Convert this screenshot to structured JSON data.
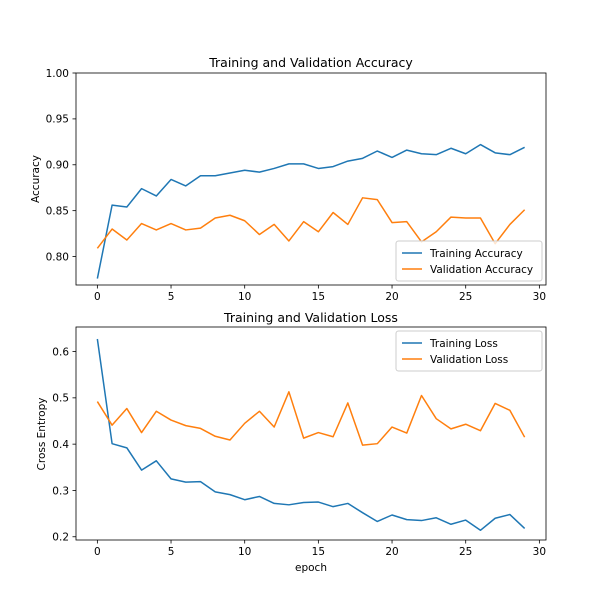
{
  "chart_data": [
    {
      "type": "line",
      "title": "Training and Validation Accuracy",
      "xlabel": "",
      "ylabel": "Accuracy",
      "xlim": [
        -1.45,
        30.45
      ],
      "ylim": [
        0.769,
        1.0
      ],
      "xticks": [
        "0",
        "5",
        "10",
        "15",
        "20",
        "25",
        "30"
      ],
      "xtick_values": [
        0,
        5,
        10,
        15,
        20,
        25,
        30
      ],
      "yticks": [
        "0.80",
        "0.85",
        "0.90",
        "0.95",
        "1.00"
      ],
      "ytick_values": [
        0.8,
        0.85,
        0.9,
        0.95,
        1.0
      ],
      "legend_position": "lower-right",
      "x": [
        0,
        1,
        2,
        3,
        4,
        5,
        6,
        7,
        8,
        9,
        10,
        11,
        12,
        13,
        14,
        15,
        16,
        17,
        18,
        19,
        20,
        21,
        22,
        23,
        24,
        25,
        26,
        27,
        28,
        29
      ],
      "series": [
        {
          "name": "Training Accuracy",
          "color": "#1f77b4",
          "values": [
            0.776,
            0.856,
            0.854,
            0.874,
            0.866,
            0.884,
            0.877,
            0.888,
            0.888,
            0.891,
            0.894,
            0.892,
            0.896,
            0.901,
            0.901,
            0.896,
            0.898,
            0.904,
            0.907,
            0.915,
            0.908,
            0.916,
            0.912,
            0.911,
            0.918,
            0.912,
            0.922,
            0.913,
            0.911,
            0.919
          ]
        },
        {
          "name": "Validation Accuracy",
          "color": "#ff7f0e",
          "values": [
            0.809,
            0.83,
            0.818,
            0.836,
            0.829,
            0.836,
            0.829,
            0.831,
            0.842,
            0.845,
            0.839,
            0.824,
            0.835,
            0.817,
            0.838,
            0.827,
            0.848,
            0.835,
            0.864,
            0.862,
            0.837,
            0.838,
            0.816,
            0.827,
            0.843,
            0.842,
            0.842,
            0.814,
            0.835,
            0.851
          ]
        }
      ]
    },
    {
      "type": "line",
      "title": "Training and Validation Loss",
      "xlabel": "epoch",
      "ylabel": "Cross Entropy",
      "xlim": [
        -1.45,
        30.45
      ],
      "ylim": [
        0.193,
        0.653
      ],
      "xticks": [
        "0",
        "5",
        "10",
        "15",
        "20",
        "25",
        "30"
      ],
      "xtick_values": [
        0,
        5,
        10,
        15,
        20,
        25,
        30
      ],
      "yticks": [
        "0.2",
        "0.3",
        "0.4",
        "0.5",
        "0.6"
      ],
      "ytick_values": [
        0.2,
        0.3,
        0.4,
        0.5,
        0.6
      ],
      "legend_position": "upper-right",
      "x": [
        0,
        1,
        2,
        3,
        4,
        5,
        6,
        7,
        8,
        9,
        10,
        11,
        12,
        13,
        14,
        15,
        16,
        17,
        18,
        19,
        20,
        21,
        22,
        23,
        24,
        25,
        26,
        27,
        28,
        29
      ],
      "series": [
        {
          "name": "Training Loss",
          "color": "#1f77b4",
          "values": [
            0.627,
            0.401,
            0.392,
            0.344,
            0.364,
            0.325,
            0.318,
            0.319,
            0.297,
            0.291,
            0.28,
            0.287,
            0.272,
            0.269,
            0.274,
            0.275,
            0.265,
            0.272,
            0.252,
            0.233,
            0.247,
            0.237,
            0.235,
            0.241,
            0.227,
            0.236,
            0.214,
            0.24,
            0.248,
            0.218
          ]
        },
        {
          "name": "Validation Loss",
          "color": "#ff7f0e",
          "values": [
            0.492,
            0.441,
            0.477,
            0.425,
            0.471,
            0.452,
            0.44,
            0.434,
            0.417,
            0.409,
            0.445,
            0.471,
            0.437,
            0.513,
            0.413,
            0.425,
            0.416,
            0.489,
            0.398,
            0.401,
            0.437,
            0.424,
            0.505,
            0.455,
            0.433,
            0.443,
            0.429,
            0.488,
            0.473,
            0.415
          ]
        }
      ]
    }
  ]
}
